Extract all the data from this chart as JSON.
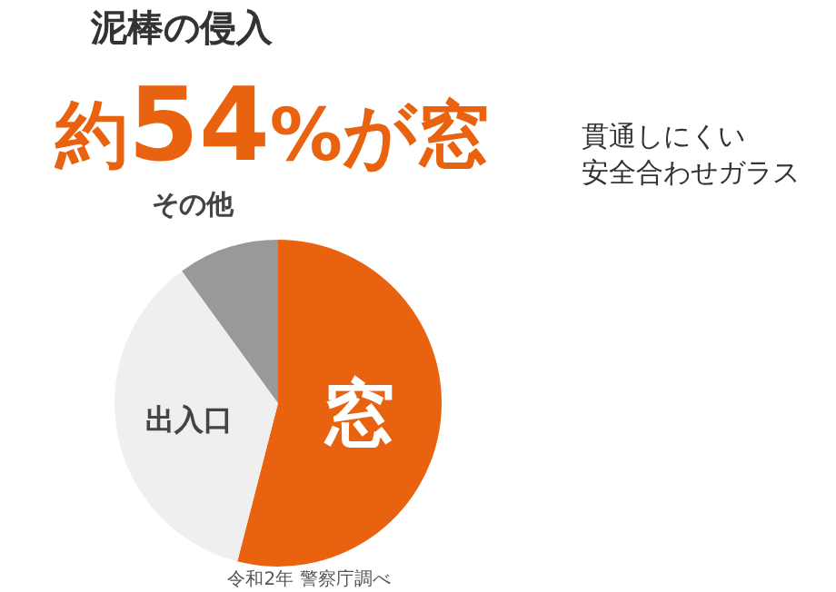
{
  "chart_data": {
    "type": "pie",
    "title": "泥棒の侵入",
    "subtitle": "約54%が窓",
    "categories": [
      "窓",
      "出入口",
      "その他"
    ],
    "values": [
      54,
      36,
      10
    ],
    "colors": [
      "#e8620f",
      "#efefef",
      "#999999"
    ],
    "annotations": [
      "貫通しにくい",
      "安全合わせガラス",
      "令和2年 警察庁調べ"
    ]
  }
}
